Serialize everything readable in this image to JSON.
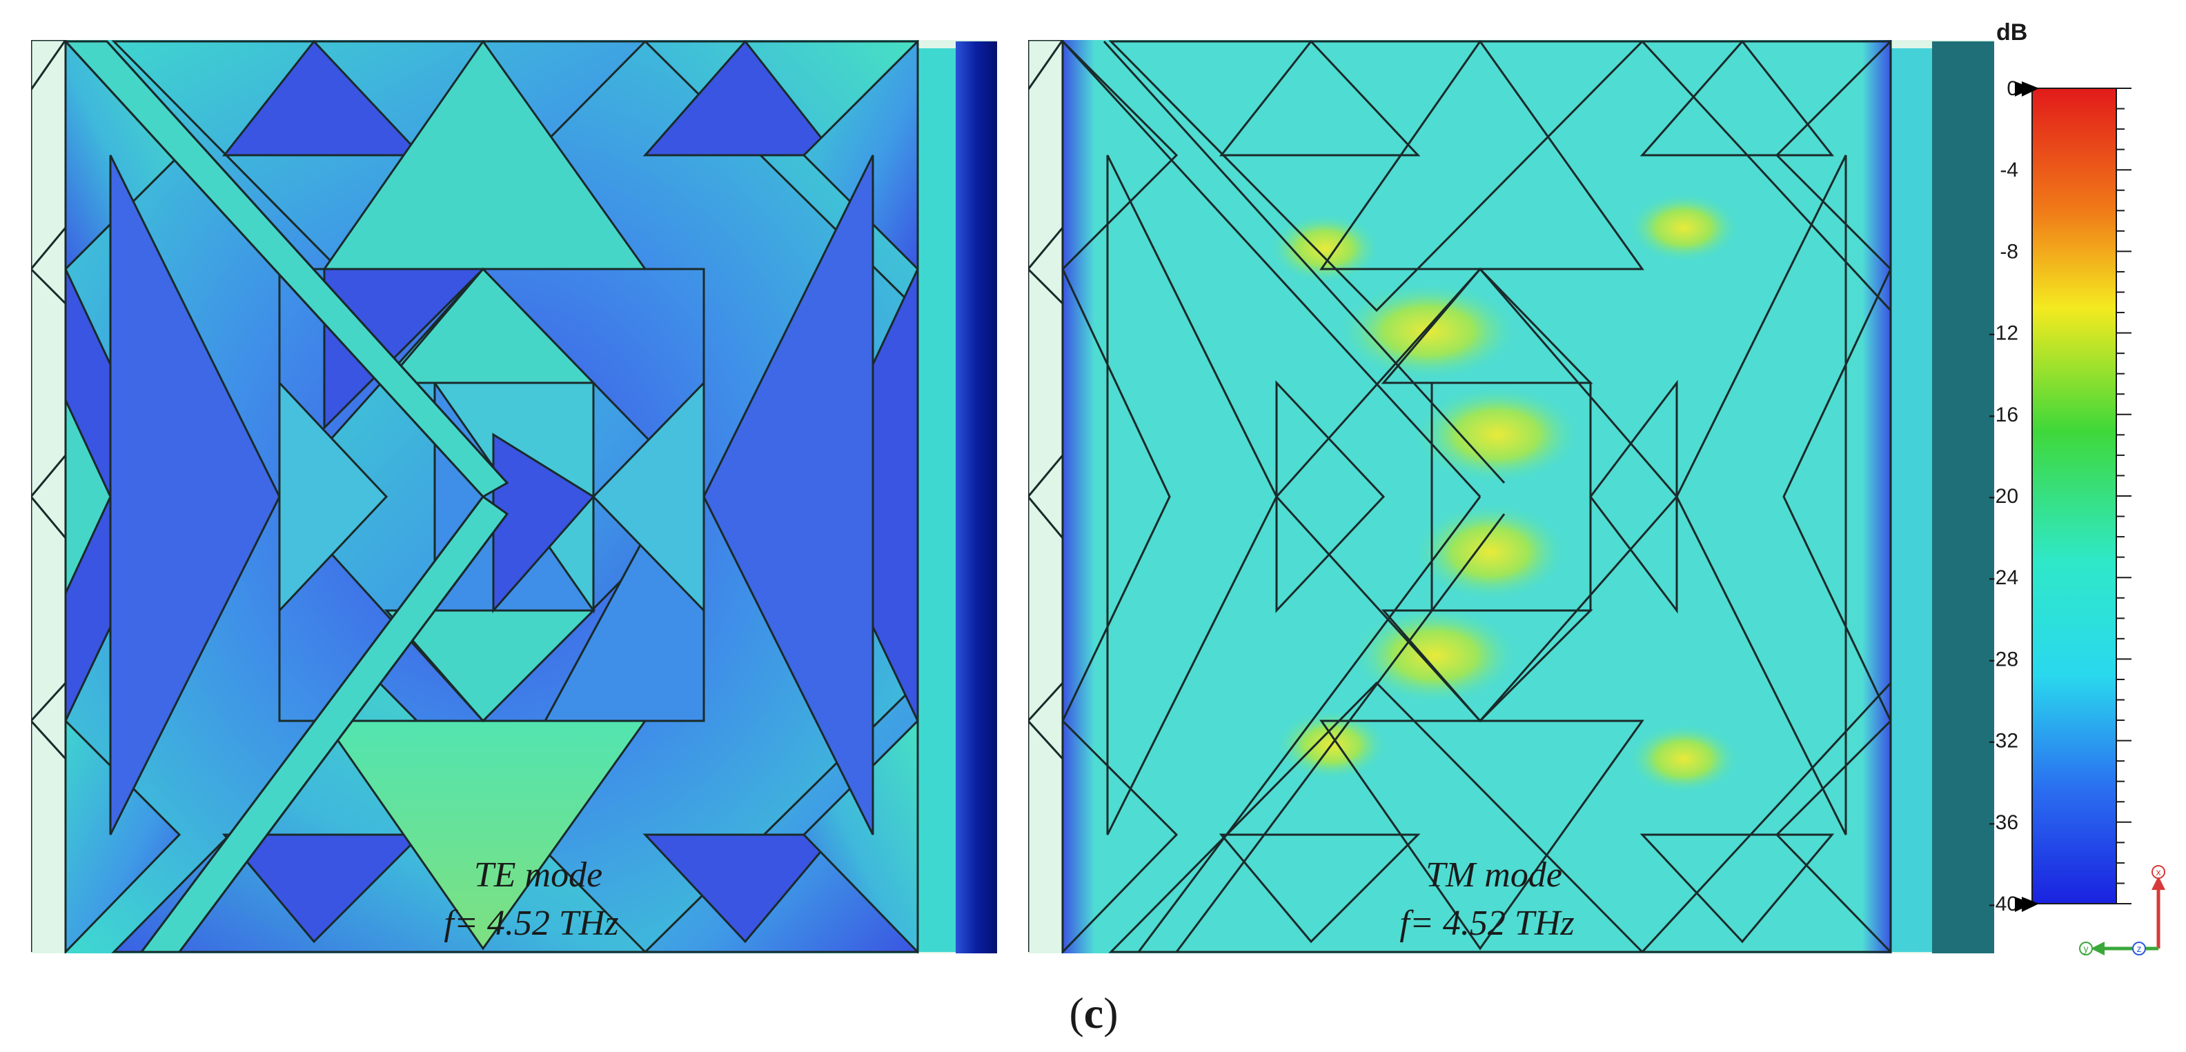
{
  "panels": [
    {
      "mode": "TE mode",
      "frequency": "f= 4.52 THz"
    },
    {
      "mode": "TM mode",
      "frequency": "f= 4.52 THz"
    }
  ],
  "colorbar": {
    "unit": "dB",
    "ticks": [
      "0",
      "-4",
      "-8",
      "-12",
      "-16",
      "-20",
      "-24",
      "-28",
      "-32",
      "-36",
      "-40"
    ],
    "max": 0,
    "min": -40
  },
  "axes_icon": {
    "x_label": "x",
    "y_label": "y",
    "z_label": "z"
  },
  "caption": {
    "open": "(",
    "letter": "c",
    "close": ")"
  },
  "colors": {
    "cyan": "#3fe0d0",
    "blue": "#3a4fe0",
    "green": "#7fe060",
    "yellow": "#e8e840",
    "dark_blue": "#06127a",
    "teal_edge": "#1f6f78"
  }
}
